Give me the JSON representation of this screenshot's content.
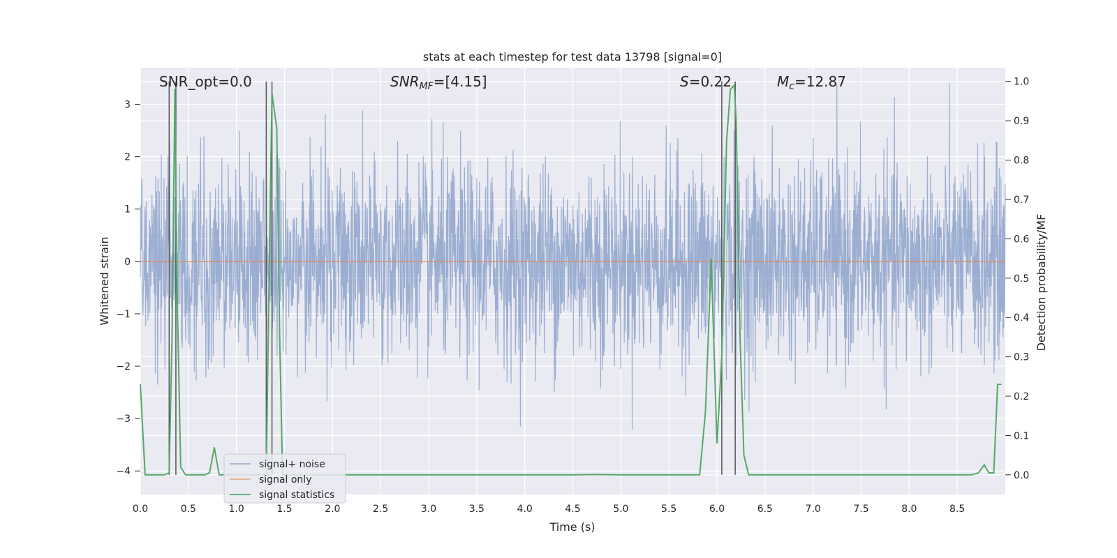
{
  "chart_data": {
    "type": "line",
    "title": "stats at each timestep for test data 13798 [signal=0]",
    "xlabel": "Time (s)",
    "ylabel": "Whitened strain",
    "ylabel_right": "Detection probability/MF",
    "xlim": [
      0.0,
      9.0
    ],
    "ylim": [
      -4.45,
      3.7
    ],
    "ylim_right": [
      -0.05,
      1.035
    ],
    "x_ticks": [
      "0.0",
      "0.5",
      "1.0",
      "1.5",
      "2.0",
      "2.5",
      "3.0",
      "3.5",
      "4.0",
      "4.5",
      "5.0",
      "5.5",
      "6.0",
      "6.5",
      "7.0",
      "7.5",
      "8.0",
      "8.5"
    ],
    "y_ticks": [
      "3",
      "2",
      "1",
      "0",
      "−1",
      "−2",
      "−3",
      "−4"
    ],
    "y_right_ticks": [
      "1.0",
      "0.9",
      "0.8",
      "0.7",
      "0.6",
      "0.5",
      "0.4",
      "0.3",
      "0.2",
      "0.1",
      "0.0"
    ],
    "grid": true,
    "legend_position": "lower-left",
    "annotations": {
      "snr_opt": "SNR_opt=0.0",
      "snr_mf_label": "SNR",
      "snr_mf_sub": "MF",
      "snr_mf_value": "=[4.15]",
      "s_label": "S",
      "s_value": "=0.22",
      "mc_label": "M",
      "mc_sub": "c",
      "mc_value": "=12.87"
    },
    "vertical_lines_x": [
      0.3,
      0.37,
      1.31,
      1.37,
      6.05,
      6.19
    ],
    "series": [
      {
        "name": "signal+ noise",
        "color": "#4c72b0",
        "description_amplitude": "whitened noise roughly between -3.3 and 3.5"
      },
      {
        "name": "signal only",
        "color": "#dd8452",
        "x": [
          0.0,
          9.0
        ],
        "y": [
          0.0,
          0.0
        ]
      },
      {
        "name": "signal statistics",
        "color": "#55a868",
        "axis": "right",
        "x": [
          0.0,
          0.05,
          0.1,
          0.15,
          0.2,
          0.25,
          0.3,
          0.33,
          0.36,
          0.38,
          0.42,
          0.47,
          0.52,
          0.57,
          0.62,
          0.67,
          0.72,
          0.77,
          0.82,
          0.87,
          0.92,
          0.97,
          1.02,
          1.07,
          1.12,
          1.17,
          1.22,
          1.27,
          1.31,
          1.34,
          1.37,
          1.42,
          1.45,
          1.48,
          1.52,
          1.6,
          2.0,
          3.0,
          4.0,
          4.5,
          4.75,
          5.0,
          5.5,
          5.82,
          5.88,
          5.94,
          6.0,
          6.05,
          6.1,
          6.14,
          6.18,
          6.2,
          6.24,
          6.28,
          6.33,
          6.43,
          7.0,
          8.0,
          8.5,
          8.65,
          8.72,
          8.78,
          8.83,
          8.88,
          8.92,
          8.96
        ],
        "y": [
          0.23,
          0.0,
          0.0,
          0.0,
          0.0,
          0.0,
          0.005,
          0.35,
          0.98,
          0.5,
          0.02,
          0.0,
          0.0,
          0.0,
          0.0,
          0.0,
          0.005,
          0.07,
          0.0,
          0.0,
          0.0,
          0.0,
          0.0,
          0.0,
          0.0,
          0.0,
          0.0,
          0.0,
          0.0,
          0.5,
          0.97,
          0.88,
          0.35,
          0.0,
          0.0,
          0.0,
          0.0,
          0.0,
          0.0,
          0.0,
          0.001,
          0.0,
          0.0,
          0.0,
          0.16,
          0.55,
          0.08,
          0.3,
          0.85,
          0.98,
          0.99,
          0.9,
          0.35,
          0.05,
          0.0,
          0.0,
          0.0,
          0.0,
          0.0,
          0.0,
          0.005,
          0.025,
          0.005,
          0.005,
          0.23,
          0.23
        ]
      }
    ]
  }
}
